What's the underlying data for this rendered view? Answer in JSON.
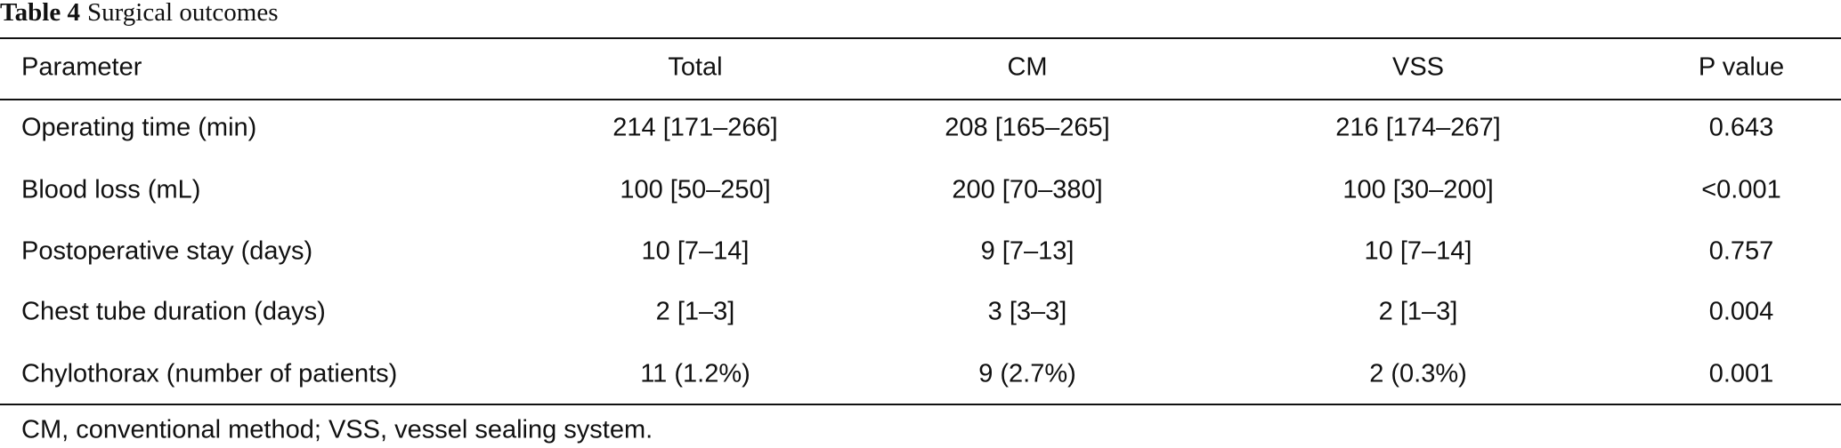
{
  "title": {
    "label": "Table 4",
    "text": "Surgical outcomes"
  },
  "table": {
    "header": [
      "Parameter",
      "Total",
      "CM",
      "VSS",
      "P value"
    ],
    "rows": [
      [
        "Operating time (min)",
        "214 [171–266]",
        "208 [165–265]",
        "216 [174–267]",
        "0.643"
      ],
      [
        "Blood loss (mL)",
        "100 [50–250]",
        "200 [70–380]",
        "100 [30–200]",
        "<0.001"
      ],
      [
        "Postoperative stay (days)",
        "10 [7–14]",
        "9 [7–13]",
        "10 [7–14]",
        "0.757"
      ],
      [
        "Chest tube duration (days)",
        "2 [1–3]",
        "3 [3–3]",
        "2 [1–3]",
        "0.004"
      ],
      [
        "Chylothorax (number of patients)",
        "11 (1.2%)",
        "9 (2.7%)",
        "2 (0.3%)",
        "0.001"
      ]
    ]
  },
  "footnote": "CM, conventional method; VSS, vessel sealing system."
}
